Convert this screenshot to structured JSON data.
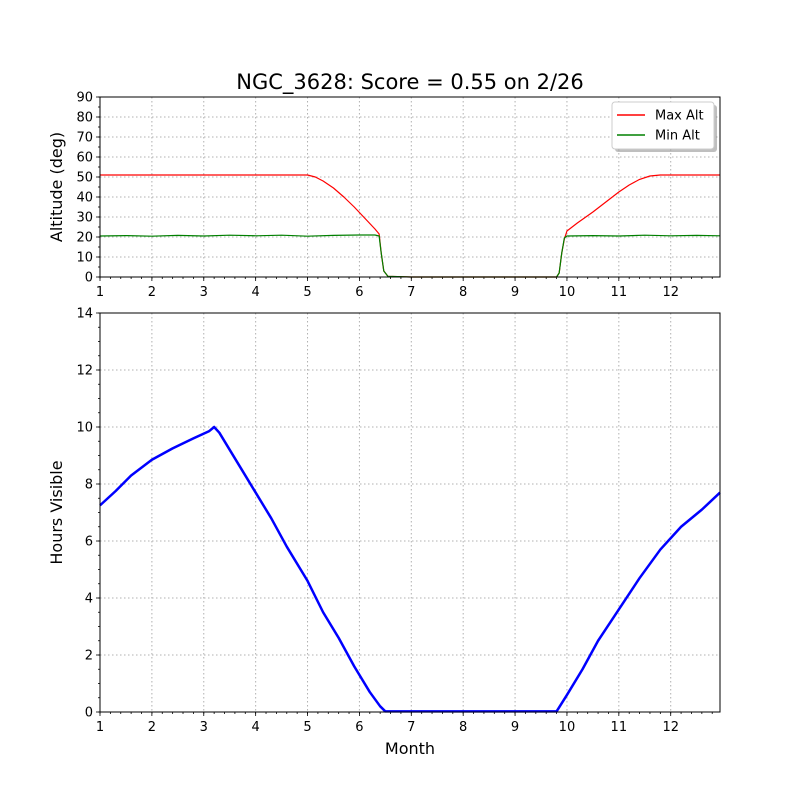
{
  "title": "NGC_3628: Score = 0.55 on 2/26",
  "colors": {
    "max_alt": "#ff0000",
    "min_alt": "#008000",
    "hours": "#0000ff",
    "grid": "#b0b0b0"
  },
  "chart_data": [
    {
      "type": "line",
      "xlabel": "",
      "ylabel": "Altitude (deg)",
      "xlim": [
        1,
        12.95
      ],
      "ylim": [
        0,
        90
      ],
      "xticks": [
        1,
        2,
        3,
        4,
        5,
        6,
        7,
        8,
        9,
        10,
        11,
        12
      ],
      "yticks": [
        0,
        10,
        20,
        30,
        40,
        50,
        60,
        70,
        80,
        90
      ],
      "grid": true,
      "legend": "top-right",
      "series": [
        {
          "name": "Max Alt",
          "color": "#ff0000",
          "points": [
            [
              1,
              51
            ],
            [
              5.0,
              51
            ],
            [
              5.15,
              50
            ],
            [
              5.3,
              48
            ],
            [
              5.5,
              44.5
            ],
            [
              5.7,
              40
            ],
            [
              5.9,
              35
            ],
            [
              6.1,
              29.5
            ],
            [
              6.3,
              24
            ],
            [
              6.38,
              21.5
            ],
            [
              6.42,
              12
            ],
            [
              6.47,
              3
            ],
            [
              6.55,
              0.3
            ],
            [
              7,
              0
            ],
            [
              8,
              0
            ],
            [
              9,
              0
            ],
            [
              9.8,
              0
            ],
            [
              9.85,
              2
            ],
            [
              9.9,
              12
            ],
            [
              9.95,
              19
            ],
            [
              10.0,
              23
            ],
            [
              10.2,
              27
            ],
            [
              10.5,
              32.5
            ],
            [
              10.8,
              38.5
            ],
            [
              11.0,
              42.5
            ],
            [
              11.2,
              46
            ],
            [
              11.4,
              48.8
            ],
            [
              11.6,
              50.5
            ],
            [
              11.8,
              51
            ],
            [
              12.95,
              51
            ]
          ]
        },
        {
          "name": "Min Alt",
          "color": "#008000",
          "points": [
            [
              1,
              20.5
            ],
            [
              1.5,
              20.7
            ],
            [
              2,
              20.4
            ],
            [
              2.5,
              20.8
            ],
            [
              3,
              20.5
            ],
            [
              3.5,
              20.9
            ],
            [
              4,
              20.6
            ],
            [
              4.5,
              20.9
            ],
            [
              5,
              20.4
            ],
            [
              5.5,
              20.8
            ],
            [
              6,
              21
            ],
            [
              6.3,
              21
            ],
            [
              6.38,
              20.5
            ],
            [
              6.42,
              12
            ],
            [
              6.47,
              3
            ],
            [
              6.55,
              0.3
            ],
            [
              7,
              0
            ],
            [
              8,
              0
            ],
            [
              9,
              0
            ],
            [
              9.8,
              0
            ],
            [
              9.85,
              2
            ],
            [
              9.9,
              12
            ],
            [
              9.95,
              19.5
            ],
            [
              10.0,
              20.5
            ],
            [
              10.5,
              20.7
            ],
            [
              11,
              20.5
            ],
            [
              11.5,
              20.9
            ],
            [
              12,
              20.6
            ],
            [
              12.5,
              20.8
            ],
            [
              12.95,
              20.6
            ]
          ]
        }
      ]
    },
    {
      "type": "line",
      "xlabel": "Month",
      "ylabel": "Hours Visible",
      "xlim": [
        1,
        12.95
      ],
      "ylim": [
        0,
        14
      ],
      "xticks": [
        1,
        2,
        3,
        4,
        5,
        6,
        7,
        8,
        9,
        10,
        11,
        12
      ],
      "yticks": [
        0,
        2,
        4,
        6,
        8,
        10,
        12,
        14
      ],
      "grid": true,
      "series": [
        {
          "color": "#0000ff",
          "points": [
            [
              1,
              7.25
            ],
            [
              1.3,
              7.75
            ],
            [
              1.6,
              8.3
            ],
            [
              2.0,
              8.85
            ],
            [
              2.4,
              9.25
            ],
            [
              2.8,
              9.6
            ],
            [
              3.1,
              9.85
            ],
            [
              3.2,
              10.0
            ],
            [
              3.3,
              9.8
            ],
            [
              3.5,
              9.2
            ],
            [
              3.8,
              8.3
            ],
            [
              4.0,
              7.7
            ],
            [
              4.3,
              6.8
            ],
            [
              4.6,
              5.8
            ],
            [
              5.0,
              4.6
            ],
            [
              5.3,
              3.5
            ],
            [
              5.6,
              2.6
            ],
            [
              5.9,
              1.6
            ],
            [
              6.2,
              0.7
            ],
            [
              6.4,
              0.2
            ],
            [
              6.5,
              0.02
            ],
            [
              7,
              0.02
            ],
            [
              8,
              0.02
            ],
            [
              9,
              0.02
            ],
            [
              9.8,
              0.02
            ],
            [
              10.0,
              0.6
            ],
            [
              10.3,
              1.5
            ],
            [
              10.6,
              2.5
            ],
            [
              11.0,
              3.6
            ],
            [
              11.4,
              4.7
            ],
            [
              11.8,
              5.7
            ],
            [
              12.2,
              6.5
            ],
            [
              12.6,
              7.1
            ],
            [
              12.95,
              7.7
            ]
          ]
        }
      ]
    }
  ]
}
